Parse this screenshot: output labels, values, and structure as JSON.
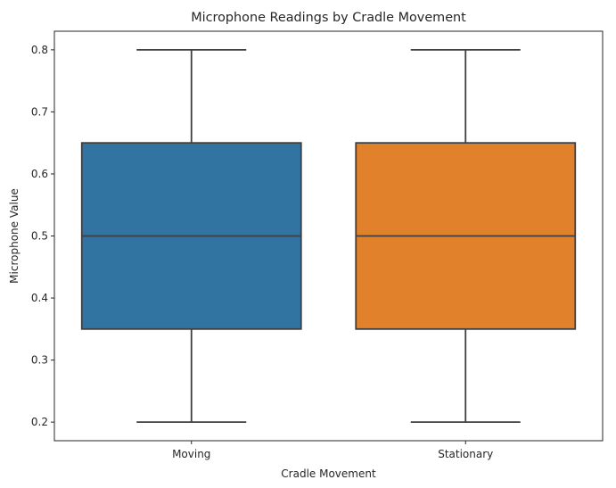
{
  "chart_data": {
    "type": "box",
    "title": "Microphone Readings by Cradle Movement",
    "xlabel": "Cradle Movement",
    "ylabel": "Microphone Value",
    "ylim": [
      0.17,
      0.83
    ],
    "yticks": [
      "0.2",
      "0.3",
      "0.4",
      "0.5",
      "0.6",
      "0.7",
      "0.8"
    ],
    "grid": false,
    "categories": [
      "Moving",
      "Stationary"
    ],
    "boxes": [
      {
        "category": "Moving",
        "min": 0.2,
        "q1": 0.35,
        "median": 0.5,
        "q3": 0.65,
        "max": 0.8,
        "color": "#3274a1"
      },
      {
        "category": "Stationary",
        "min": 0.2,
        "q1": 0.35,
        "median": 0.5,
        "q3": 0.65,
        "max": 0.8,
        "color": "#e1812c"
      }
    ],
    "line_color": "#3f3f3f"
  }
}
